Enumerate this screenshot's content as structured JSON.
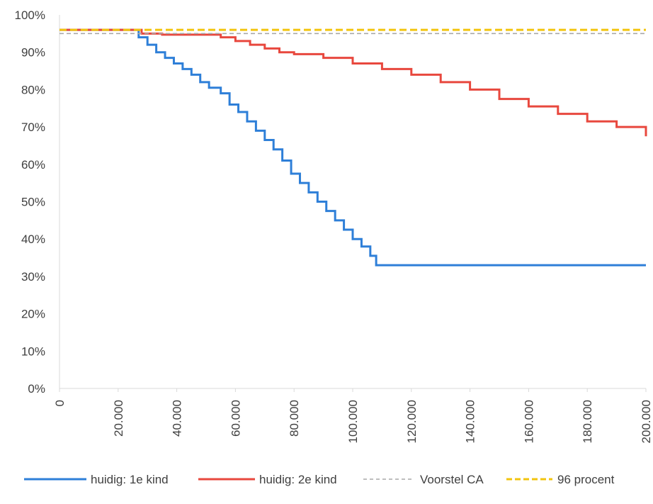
{
  "chart_data": {
    "type": "line",
    "title": "",
    "xlabel": "",
    "ylabel": "",
    "xlim": [
      0,
      200000
    ],
    "ylim": [
      0,
      100
    ],
    "y_ticks": [
      0,
      10,
      20,
      30,
      40,
      50,
      60,
      70,
      80,
      90,
      100
    ],
    "y_tick_labels": [
      "0%",
      "10%",
      "20%",
      "30%",
      "40%",
      "50%",
      "60%",
      "70%",
      "80%",
      "90%",
      "100%"
    ],
    "x_ticks": [
      0,
      20000,
      40000,
      60000,
      80000,
      100000,
      120000,
      140000,
      160000,
      180000,
      200000
    ],
    "x_tick_labels": [
      "0",
      "20.000",
      "40.000",
      "60.000",
      "80.000",
      "100.000",
      "120.000",
      "140.000",
      "160.000",
      "180.000",
      "200.000"
    ],
    "grid": false,
    "legend_position": "bottom",
    "series": [
      {
        "name": "huidig: 1e kind",
        "color": "#2e7fd8",
        "line_style": "solid",
        "step": true,
        "points": [
          [
            0,
            96
          ],
          [
            25000,
            96
          ],
          [
            27000,
            94
          ],
          [
            30000,
            92
          ],
          [
            33000,
            90
          ],
          [
            36000,
            88.5
          ],
          [
            39000,
            87
          ],
          [
            42000,
            85.5
          ],
          [
            45000,
            84
          ],
          [
            48000,
            82
          ],
          [
            51000,
            80.5
          ],
          [
            55000,
            79
          ],
          [
            58000,
            76
          ],
          [
            61000,
            74
          ],
          [
            64000,
            71.5
          ],
          [
            67000,
            69
          ],
          [
            70000,
            66.5
          ],
          [
            73000,
            64
          ],
          [
            76000,
            61
          ],
          [
            79000,
            57.5
          ],
          [
            82000,
            55
          ],
          [
            85000,
            52.5
          ],
          [
            88000,
            50
          ],
          [
            91000,
            47.5
          ],
          [
            94000,
            45
          ],
          [
            97000,
            42.5
          ],
          [
            100000,
            40
          ],
          [
            103000,
            38
          ],
          [
            106000,
            35.5
          ],
          [
            108000,
            33
          ],
          [
            127000,
            33
          ],
          [
            200000,
            33
          ]
        ]
      },
      {
        "name": "huidig: 2e kind",
        "color": "#e8483e",
        "line_style": "solid",
        "step": true,
        "points": [
          [
            0,
            96
          ],
          [
            25000,
            96
          ],
          [
            28000,
            95
          ],
          [
            35000,
            94.7
          ],
          [
            50000,
            94.7
          ],
          [
            55000,
            94
          ],
          [
            60000,
            93
          ],
          [
            65000,
            92
          ],
          [
            70000,
            91
          ],
          [
            75000,
            90
          ],
          [
            80000,
            89.5
          ],
          [
            90000,
            88.5
          ],
          [
            100000,
            87
          ],
          [
            110000,
            85.5
          ],
          [
            120000,
            84
          ],
          [
            130000,
            82
          ],
          [
            140000,
            80
          ],
          [
            150000,
            77.5
          ],
          [
            160000,
            75.5
          ],
          [
            170000,
            73.5
          ],
          [
            180000,
            71.5
          ],
          [
            190000,
            70
          ],
          [
            200000,
            67.5
          ]
        ]
      },
      {
        "name": "Voorstel CA",
        "color": "#a8a8a8",
        "line_style": "dashed",
        "step": false,
        "points": [
          [
            0,
            95
          ],
          [
            200000,
            95
          ]
        ]
      },
      {
        "name": "96 procent",
        "color": "#f2c40f",
        "line_style": "dashed",
        "step": false,
        "points": [
          [
            0,
            96
          ],
          [
            200000,
            96
          ]
        ]
      }
    ]
  }
}
